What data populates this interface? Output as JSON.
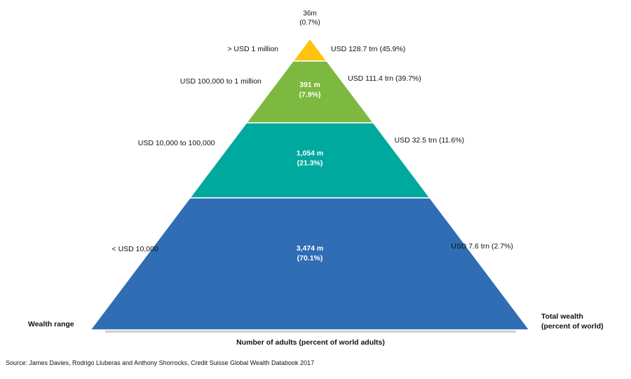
{
  "chart_data": {
    "type": "pyramid",
    "axis_label_left": "Wealth range",
    "axis_label_right_line1": "Total wealth",
    "axis_label_right_line2": "(percent of world)",
    "bottom_label": "Number of adults (percent of world adults)",
    "source": "Source: James Davies, Rodrigo Lluberas and Anthony Shorrocks, Credit Suisse Global Wealth Databook 2017",
    "tiers": [
      {
        "wealth_range": "> USD 1 million",
        "adults_line1": "36m",
        "adults_line2": "(0.7%)",
        "adults_millions": 36,
        "adults_pct": 0.7,
        "total_wealth_label": "USD 128.7 trn (45.9%)",
        "total_wealth_trn": 128.7,
        "total_wealth_pct": 45.9,
        "color": "#FFC20E"
      },
      {
        "wealth_range": "USD 100,000  to 1 million",
        "adults_line1": "391 m",
        "adults_line2": "(7.9%)",
        "adults_millions": 391,
        "adults_pct": 7.9,
        "total_wealth_label": "USD 111.4 trn (39.7%)",
        "total_wealth_trn": 111.4,
        "total_wealth_pct": 39.7,
        "color": "#7DB940"
      },
      {
        "wealth_range": "USD 10,000  to 100,000",
        "adults_line1": "1,054 m",
        "adults_line2": "(21.3%)",
        "adults_millions": 1054,
        "adults_pct": 21.3,
        "total_wealth_label": "USD 32.5 trn (11.6%)",
        "total_wealth_trn": 32.5,
        "total_wealth_pct": 11.6,
        "color": "#00A99D"
      },
      {
        "wealth_range": "< USD 10,000",
        "adults_line1": "3,474 m",
        "adults_line2": "(70.1%)",
        "adults_millions": 3474,
        "adults_pct": 70.1,
        "total_wealth_label": "USD 7.6 trn (2.7%)",
        "total_wealth_trn": 7.6,
        "total_wealth_pct": 2.7,
        "color": "#2F6DB5"
      }
    ]
  }
}
